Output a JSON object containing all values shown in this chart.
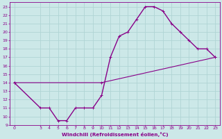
{
  "xlabel": "Windchill (Refroidissement éolien,°C)",
  "bg_color": "#cce8e8",
  "grid_color": "#b0d4d4",
  "line_color": "#880088",
  "curve1_x": [
    0,
    3,
    4,
    5,
    6,
    7,
    8,
    9,
    10,
    11,
    12,
    13,
    14,
    15,
    16,
    17,
    18,
    19,
    20,
    21,
    22,
    23
  ],
  "curve1_y": [
    14,
    11,
    11,
    9.5,
    9.5,
    11,
    11,
    11,
    12.5,
    17,
    19.5,
    20,
    21.5,
    23,
    23,
    22.5,
    21,
    20,
    19,
    18,
    18,
    17
  ],
  "curve2_x": [
    0,
    10,
    23
  ],
  "curve2_y": [
    14,
    14,
    17
  ],
  "xlim": [
    -0.5,
    23.5
  ],
  "ylim": [
    9,
    23.5
  ],
  "xticks": [
    0,
    3,
    4,
    5,
    6,
    7,
    8,
    9,
    10,
    11,
    12,
    13,
    14,
    15,
    16,
    17,
    18,
    19,
    20,
    21,
    22,
    23
  ],
  "yticks": [
    9,
    10,
    11,
    12,
    13,
    14,
    15,
    16,
    17,
    18,
    19,
    20,
    21,
    22,
    23
  ]
}
